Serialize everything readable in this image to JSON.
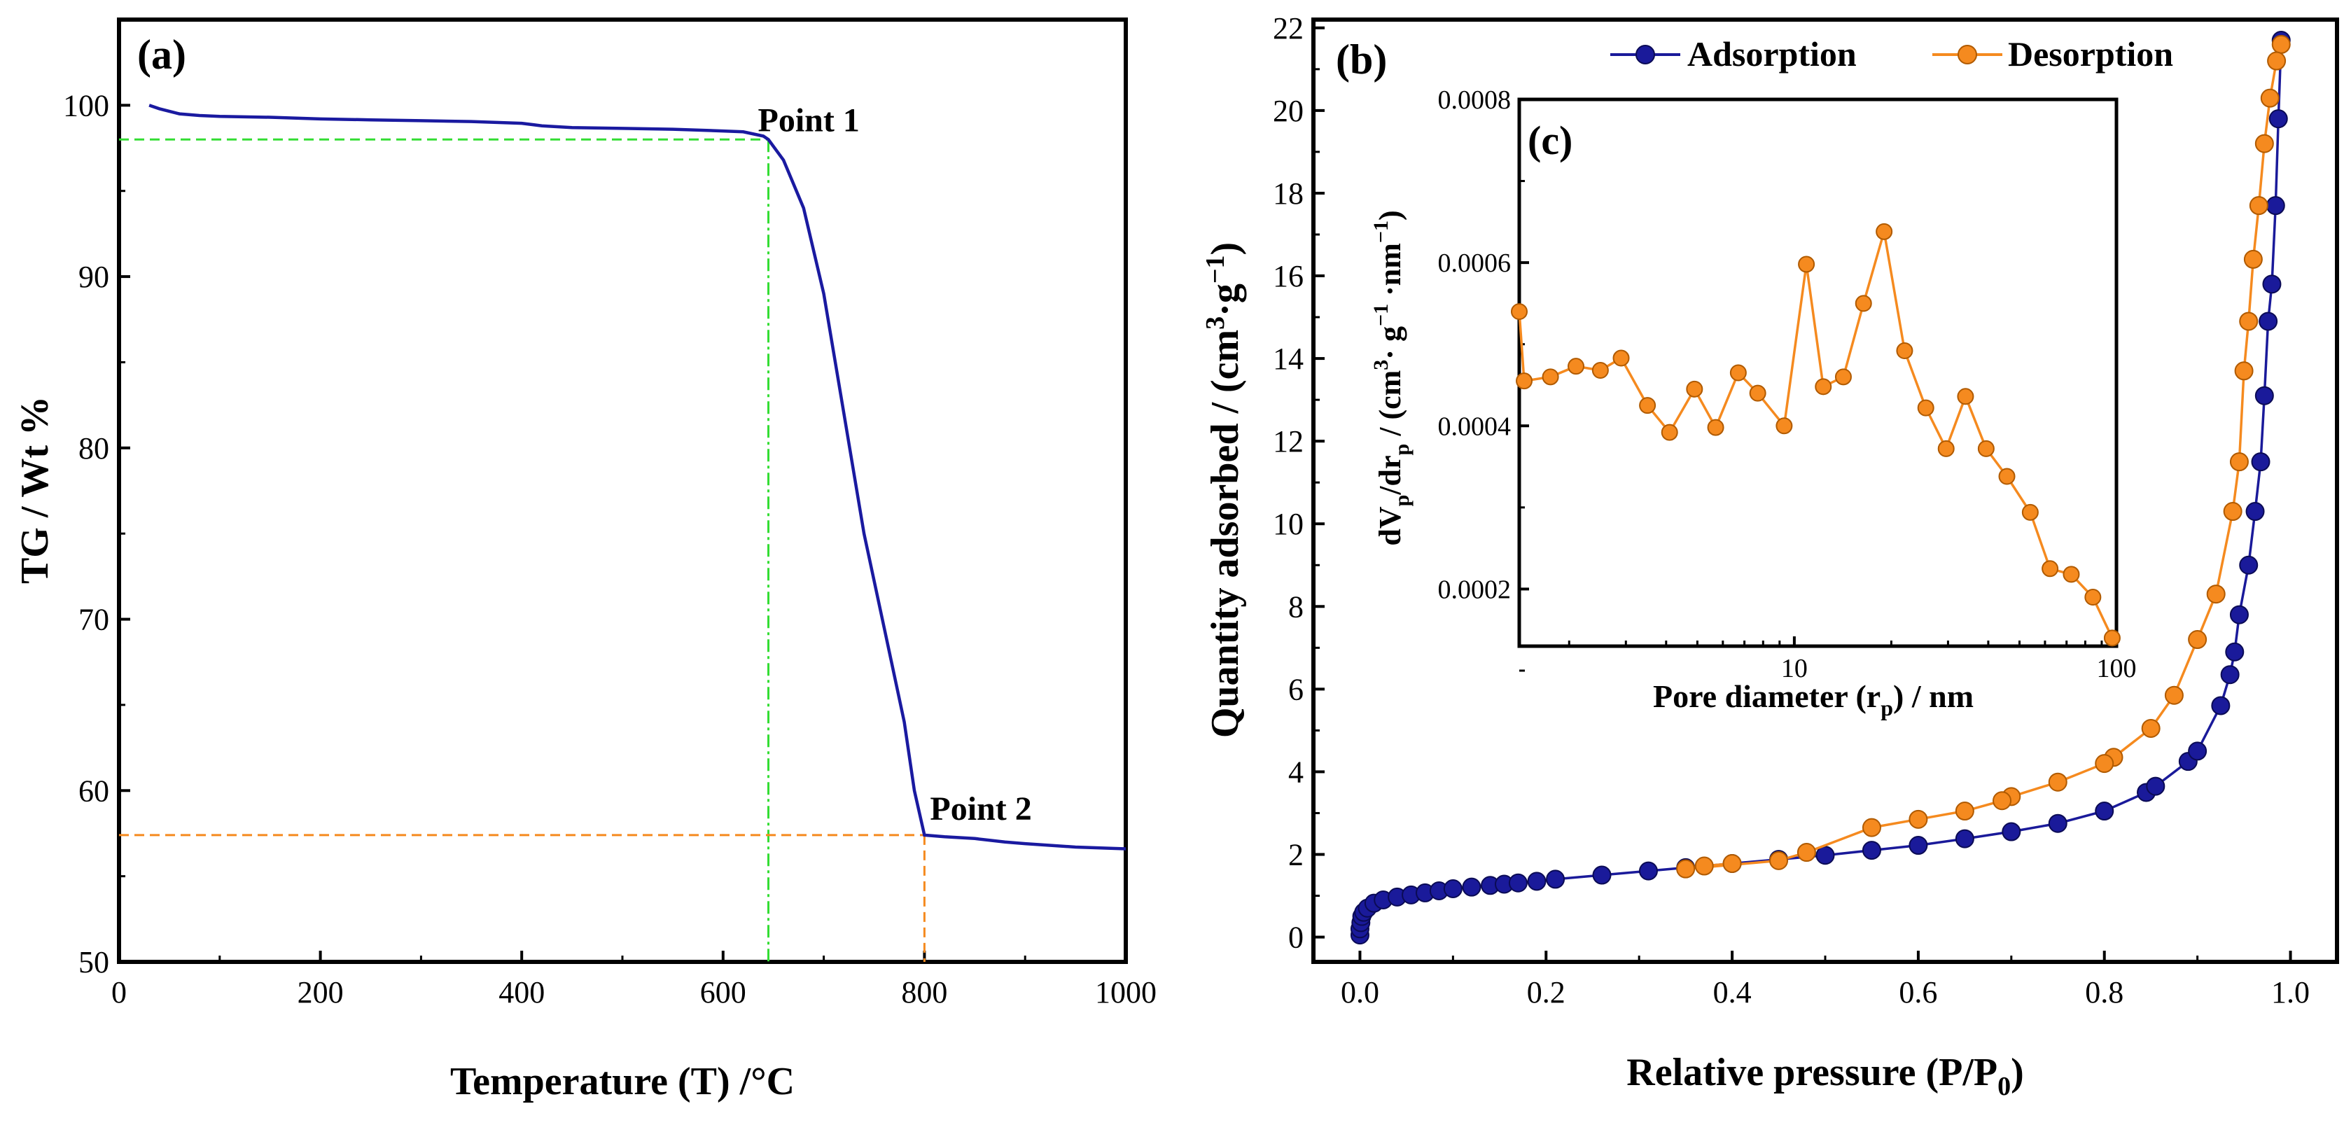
{
  "colors": {
    "tg_line": "#1a1aa0",
    "adsorption": "#1a1a9a",
    "desorption": "#f58a1f",
    "point1_guide": "#33dd33",
    "point2_guide": "#f58a1f",
    "axis": "#000000"
  },
  "chart_data": [
    {
      "panel": "(a)",
      "type": "line",
      "xlabel": "Temperature (T) /°C",
      "ylabel": "TG / Wt %",
      "xlim": [
        0,
        1000
      ],
      "ylim": [
        50,
        105
      ],
      "xticks": [
        0,
        200,
        400,
        600,
        800,
        1000
      ],
      "yticks": [
        50,
        60,
        70,
        80,
        90,
        100
      ],
      "series": [
        {
          "name": "TG",
          "x": [
            30,
            40,
            60,
            80,
            100,
            150,
            200,
            250,
            300,
            350,
            400,
            420,
            450,
            500,
            550,
            600,
            620,
            640,
            645,
            660,
            680,
            700,
            720,
            740,
            760,
            780,
            790,
            800,
            820,
            850,
            880,
            900,
            950,
            1000
          ],
          "y": [
            100.0,
            99.8,
            99.5,
            99.4,
            99.35,
            99.3,
            99.2,
            99.15,
            99.1,
            99.05,
            98.95,
            98.8,
            98.7,
            98.65,
            98.6,
            98.5,
            98.45,
            98.2,
            98.0,
            96.8,
            94.0,
            89.0,
            82.0,
            75.0,
            69.5,
            64.0,
            60.0,
            57.4,
            57.3,
            57.2,
            57.0,
            56.9,
            56.7,
            56.6
          ]
        }
      ],
      "annotations": [
        {
          "label": "Point 1",
          "x": 645,
          "y": 98.0
        },
        {
          "label": "Point 2",
          "x": 800,
          "y": 57.4
        }
      ]
    },
    {
      "panel": "(b)",
      "type": "line",
      "xlabel": "Relative pressure (P/P₀)",
      "ylabel": "Quantity adsorbed / (cm³·g⁻¹)",
      "xlim": [
        -0.05,
        1.05
      ],
      "ylim": [
        -0.6,
        22.2
      ],
      "xticks": [
        0.0,
        0.2,
        0.4,
        0.6,
        0.8,
        1.0
      ],
      "xtick_labels": [
        "0.0",
        "0.2",
        "0.4",
        "0.6",
        "0.8",
        "1.0"
      ],
      "yticks": [
        0,
        2,
        4,
        6,
        8,
        10,
        12,
        14,
        16,
        18,
        20,
        22
      ],
      "legend": "top-right",
      "series": [
        {
          "name": "Adsorption",
          "x": [
            0.0,
            0.0,
            0.001,
            0.002,
            0.004,
            0.008,
            0.015,
            0.025,
            0.04,
            0.055,
            0.07,
            0.085,
            0.1,
            0.12,
            0.14,
            0.155,
            0.17,
            0.19,
            0.21,
            0.26,
            0.31,
            0.35,
            0.4,
            0.45,
            0.5,
            0.55,
            0.6,
            0.65,
            0.7,
            0.75,
            0.8,
            0.845,
            0.855,
            0.89,
            0.9,
            0.925,
            0.935,
            0.94,
            0.945,
            0.955,
            0.962,
            0.968,
            0.972,
            0.976,
            0.98,
            0.984,
            0.987,
            0.99
          ],
          "y": [
            0.05,
            0.2,
            0.35,
            0.5,
            0.6,
            0.7,
            0.82,
            0.9,
            0.97,
            1.02,
            1.07,
            1.12,
            1.17,
            1.21,
            1.25,
            1.28,
            1.31,
            1.35,
            1.4,
            1.5,
            1.6,
            1.68,
            1.78,
            1.88,
            1.98,
            2.1,
            2.22,
            2.38,
            2.55,
            2.75,
            3.05,
            3.5,
            3.65,
            4.25,
            4.5,
            5.6,
            6.35,
            6.9,
            7.8,
            9.0,
            10.3,
            11.5,
            13.1,
            14.9,
            15.8,
            17.7,
            19.8,
            21.7
          ]
        },
        {
          "name": "Desorption",
          "x": [
            0.99,
            0.985,
            0.978,
            0.972,
            0.966,
            0.96,
            0.955,
            0.95,
            0.945,
            0.938,
            0.92,
            0.9,
            0.875,
            0.85,
            0.81,
            0.8,
            0.75,
            0.7,
            0.69,
            0.65,
            0.6,
            0.55,
            0.48,
            0.45,
            0.35,
            0.37,
            0.4
          ],
          "y": [
            21.6,
            21.2,
            20.3,
            19.2,
            17.7,
            16.4,
            14.9,
            13.7,
            11.5,
            10.3,
            8.3,
            7.2,
            5.85,
            5.05,
            4.35,
            4.2,
            3.75,
            3.4,
            3.3,
            3.05,
            2.85,
            2.65,
            2.05,
            1.85,
            1.65,
            1.72,
            1.78
          ]
        }
      ]
    },
    {
      "panel": "(c)",
      "type": "line",
      "xscale": "log",
      "xlabel": "Pore diameter (rₚ) / nm",
      "ylabel": "dVₚ/drₚ / (cm³· g⁻¹ ·nm⁻¹)",
      "xlim": [
        1.4,
        100
      ],
      "ylim": [
        0.00013,
        0.0008
      ],
      "xticks": [
        10,
        100
      ],
      "xtick_labels": [
        "10",
        "100"
      ],
      "yticks": [
        0.0002,
        0.0004,
        0.0006,
        0.0008
      ],
      "ytick_labels": [
        "0.0002",
        "0.0004",
        "0.0006",
        "0.0008"
      ],
      "series": [
        {
          "name": "Desorption",
          "x": [
            1.4,
            1.45,
            1.75,
            2.1,
            2.5,
            2.9,
            3.5,
            4.1,
            4.9,
            5.7,
            6.7,
            7.7,
            9.3,
            10.9,
            12.3,
            14.2,
            16.4,
            19.0,
            22.0,
            25.6,
            29.6,
            34.0,
            39.4,
            45.7,
            54.0,
            62.2,
            72.4,
            84.5,
            97.0
          ],
          "y": [
            0.00054,
            0.000455,
            0.00046,
            0.000473,
            0.000468,
            0.000483,
            0.000425,
            0.000392,
            0.000445,
            0.000398,
            0.000465,
            0.00044,
            0.0004,
            0.000598,
            0.000448,
            0.00046,
            0.00055,
            0.000638,
            0.000492,
            0.000422,
            0.000372,
            0.000436,
            0.000372,
            0.000338,
            0.000294,
            0.000225,
            0.000218,
            0.00019,
            0.00014
          ]
        }
      ]
    }
  ]
}
